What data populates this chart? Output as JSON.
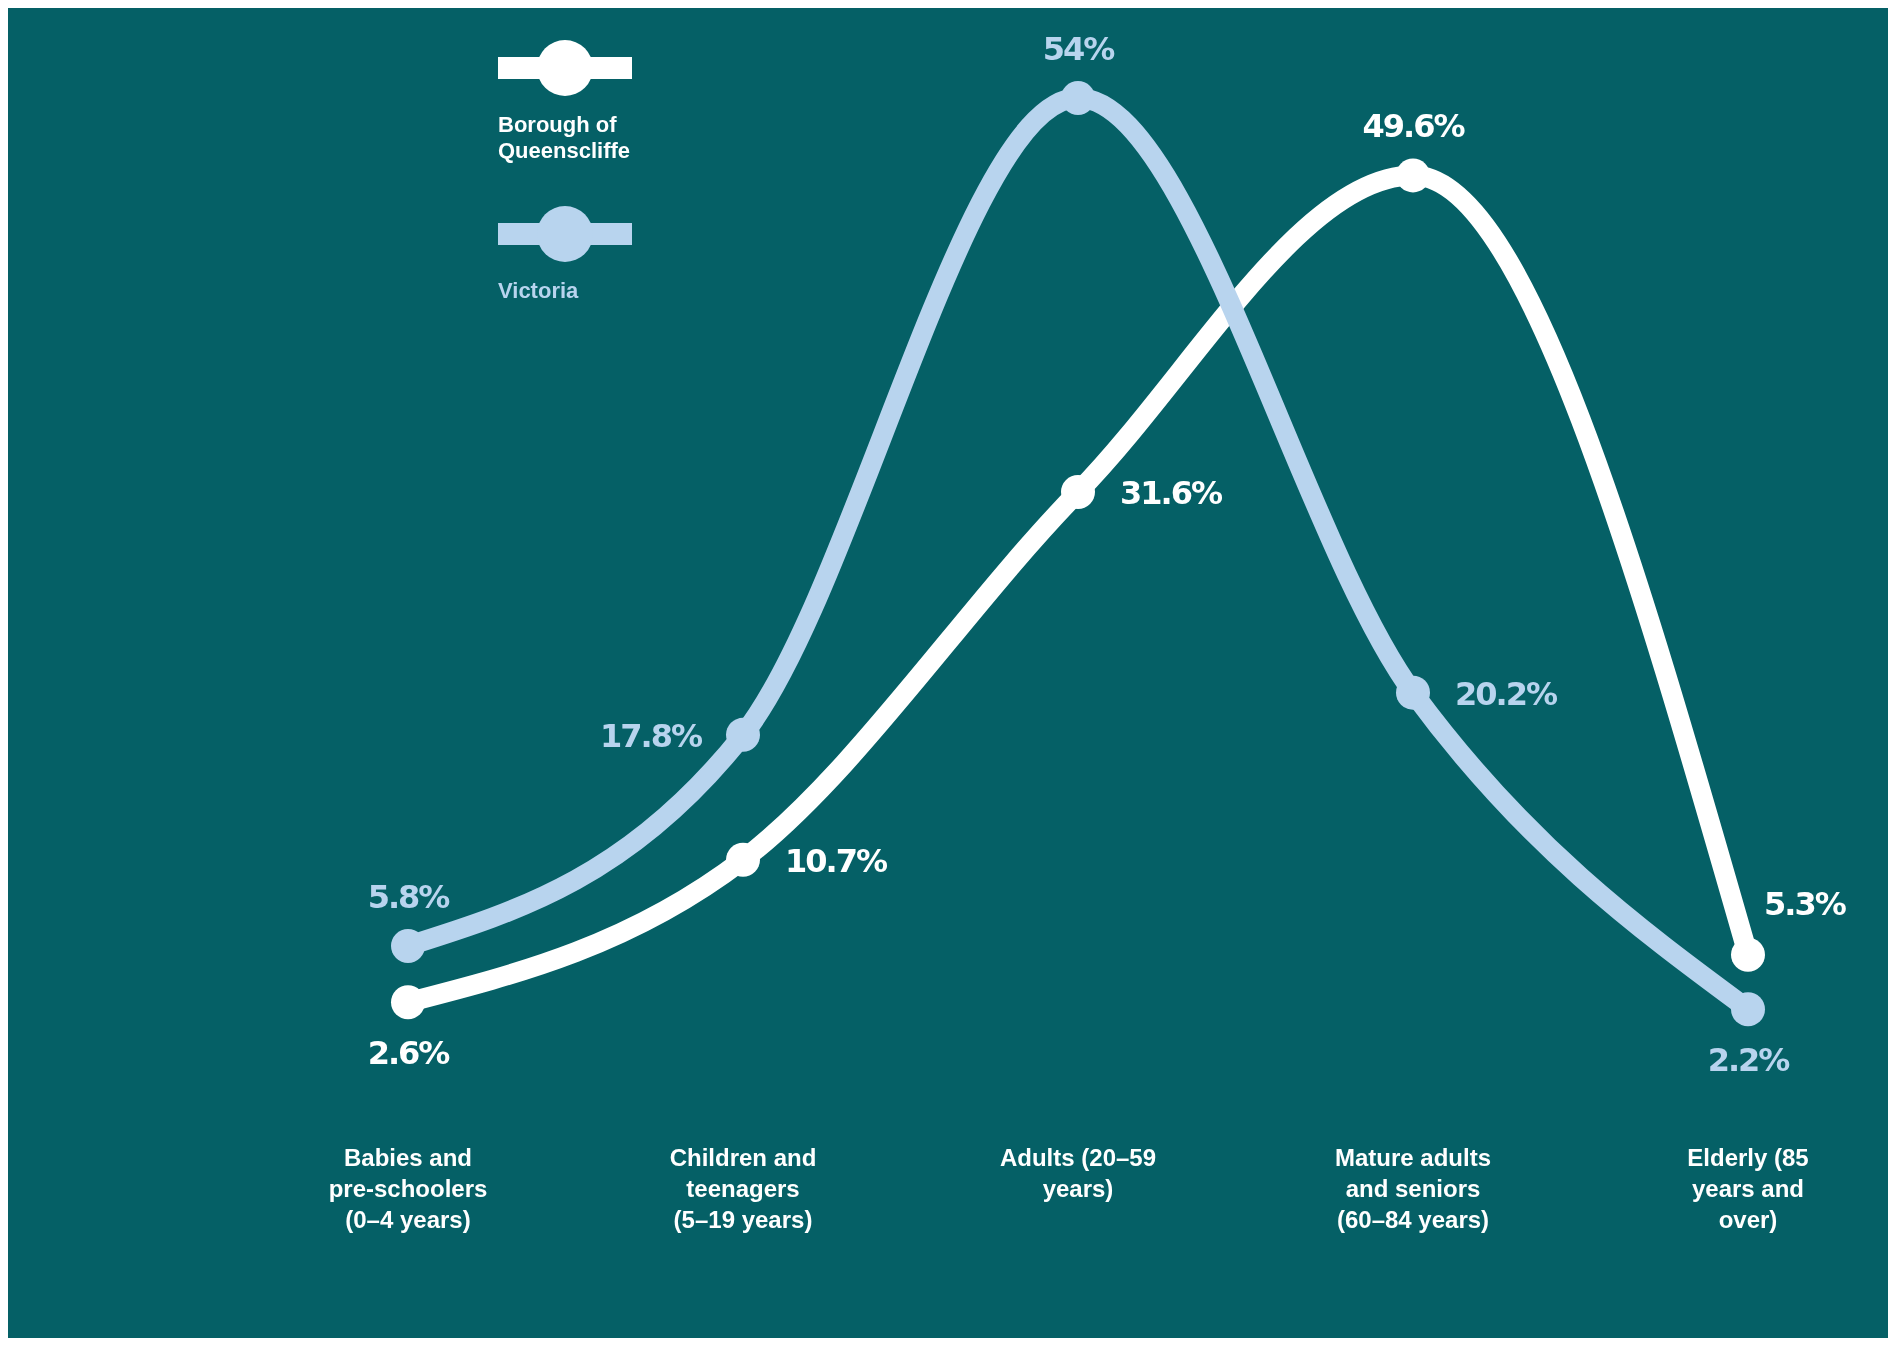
{
  "chart_data": {
    "type": "line",
    "categories": [
      "Babies and pre-schoolers (0–4 years)",
      "Children and teenagers (5–19 years)",
      "Adults (20–59 years)",
      "Mature adults and seniors (60–84 years)",
      "Elderly (85 years and over)"
    ],
    "series": [
      {
        "name": "Borough of Queenscliffe",
        "color": "#ffffff",
        "values": [
          2.6,
          10.7,
          31.6,
          49.6,
          5.3
        ],
        "value_labels": [
          "2.6%",
          "10.7%",
          "31.6%",
          "49.6%",
          "5.3%"
        ]
      },
      {
        "name": "Victoria",
        "color": "#b8d4ee",
        "values": [
          5.8,
          17.8,
          54,
          20.2,
          2.2
        ],
        "value_labels": [
          "5.8%",
          "17.8%",
          "54%",
          "20.2%",
          "2.2%"
        ]
      }
    ],
    "legend": "top left",
    "marker": "circle"
  }
}
